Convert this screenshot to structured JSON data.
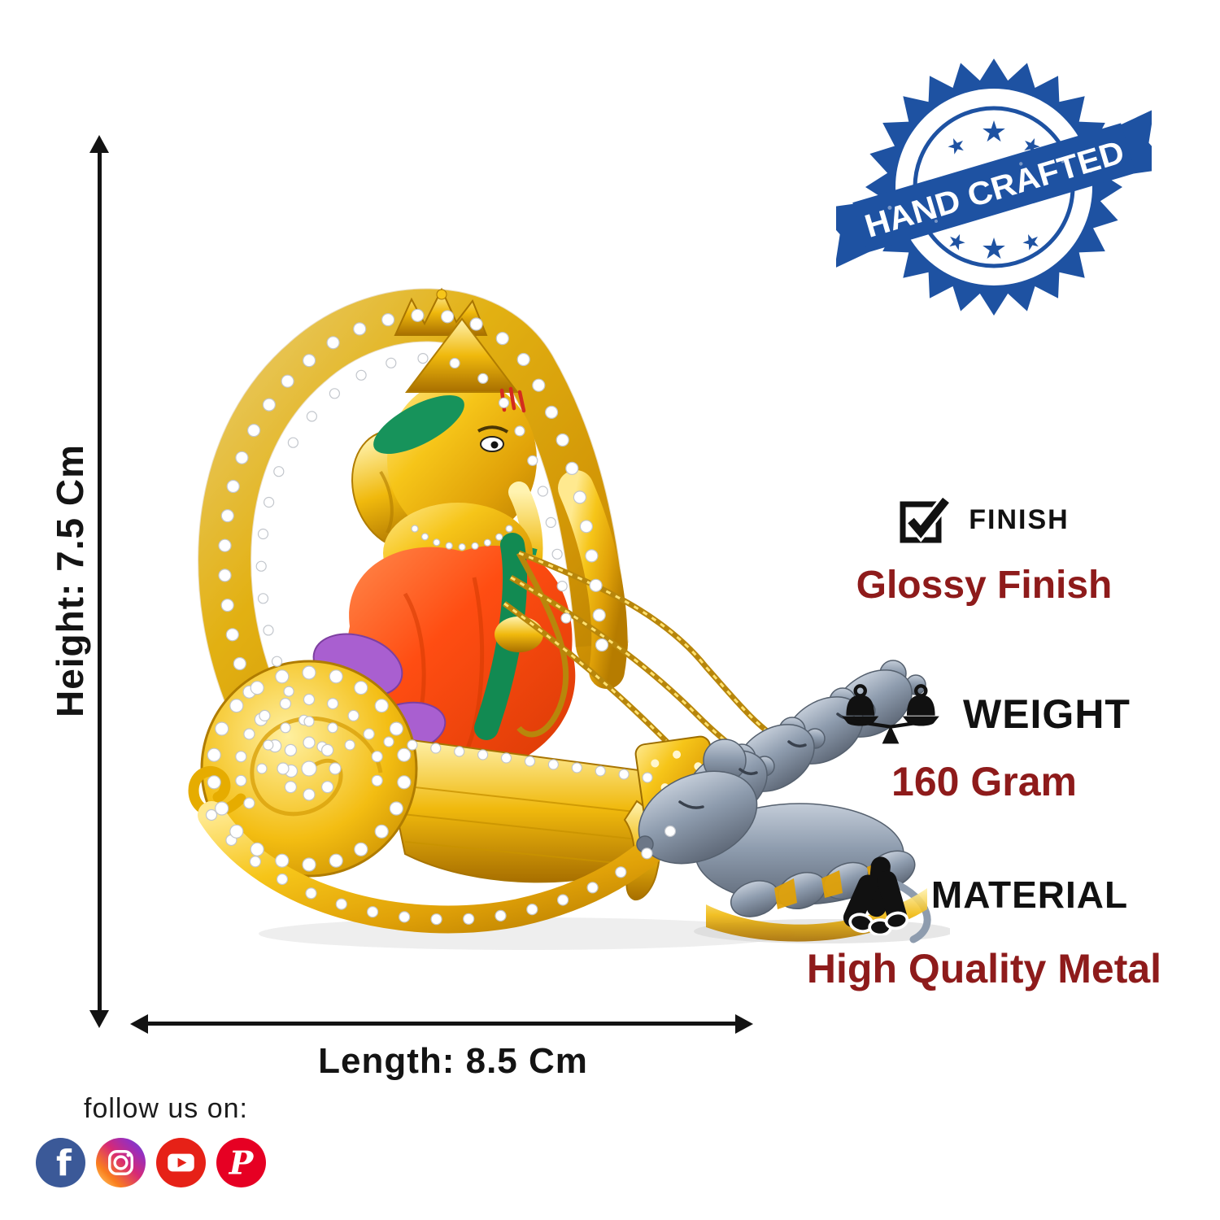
{
  "badge": {
    "label": "HAND CRAFTED",
    "color": "#1e52a2"
  },
  "dimensions": {
    "height": "Height: 7.5 Cm",
    "length": "Length: 8.5 Cm"
  },
  "features": {
    "finish": {
      "label": "FINISH",
      "value": "Glossy Finish",
      "icon": "checkbox-icon"
    },
    "weight": {
      "label": "WEIGHT",
      "value": "160 Gram",
      "icon": "balance-scale-icon"
    },
    "material": {
      "label": "MATERIAL",
      "value": "High Quality Metal",
      "icon": "metal-pipes-icon"
    }
  },
  "social": {
    "heading": "follow us on:",
    "networks": [
      {
        "name": "facebook",
        "color": "#3b5998"
      },
      {
        "name": "instagram",
        "color": "#d62976"
      },
      {
        "name": "youtube",
        "color": "#e62117"
      },
      {
        "name": "pinterest",
        "color": "#e60023"
      }
    ]
  },
  "colors": {
    "value_red": "#8e1b1b",
    "text_black": "#141414",
    "gold": "#f2b705",
    "robe_orange": "#ff4a0e",
    "sash_green": "#17935b",
    "cloth_purple": "#a95fd0",
    "mouse_grey": "#8795a8"
  }
}
